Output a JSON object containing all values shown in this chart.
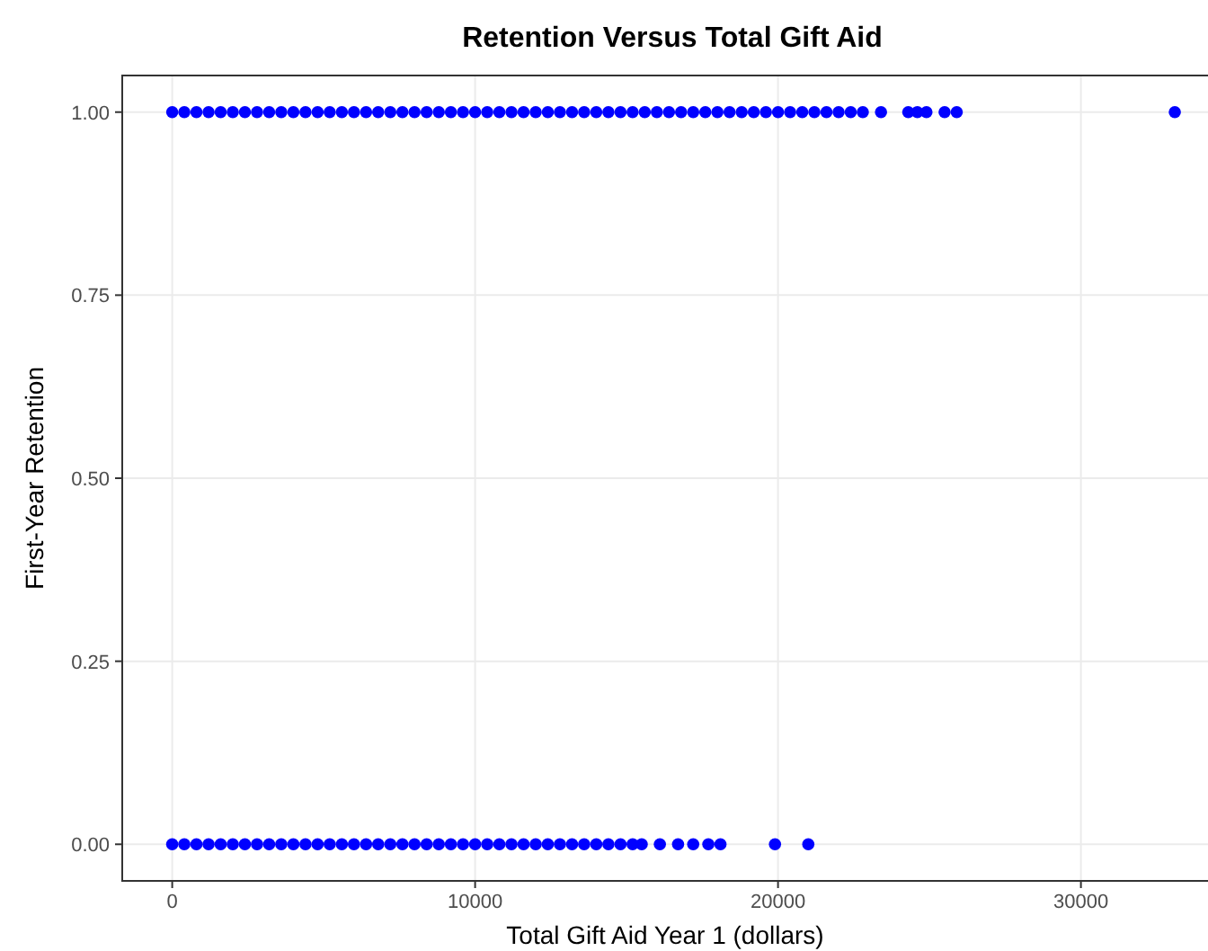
{
  "chart_data": {
    "type": "scatter",
    "title": "Retention Versus Total Gift Aid",
    "xlabel": "Total Gift Aid Year 1 (dollars)",
    "ylabel": "First-Year Retention",
    "xlim": [
      -1650,
      34700
    ],
    "ylim": [
      -0.05,
      1.05
    ],
    "xticks": [
      0,
      10000,
      20000,
      30000
    ],
    "yticks": [
      {
        "value": 0,
        "label": "0.00"
      },
      {
        "value": 0.25,
        "label": "0.25"
      },
      {
        "value": 0.5,
        "label": "0.50"
      },
      {
        "value": 0.75,
        "label": "0.75"
      },
      {
        "value": 1,
        "label": "1.00"
      }
    ],
    "grid": true,
    "marker": "circle",
    "series": [
      {
        "color": "#0000ff",
        "x": [
          0,
          400,
          800,
          1200,
          1600,
          2000,
          2400,
          2800,
          3200,
          3600,
          4000,
          4400,
          4800,
          5200,
          5600,
          6000,
          6400,
          6800,
          7200,
          7600,
          8000,
          8400,
          8800,
          9200,
          9600,
          10000,
          10400,
          10800,
          11200,
          11600,
          12000,
          12400,
          12800,
          13200,
          13600,
          14000,
          14400,
          14800,
          15200,
          15600,
          16000,
          16400,
          16800,
          17200,
          17600,
          18000,
          18400,
          18800,
          19200,
          19600,
          20000,
          20400,
          20800,
          21200,
          21600,
          22000,
          22400,
          22800,
          23400,
          24300,
          24600,
          24900,
          25500,
          25900,
          33100
        ],
        "values": [
          1,
          1,
          1,
          1,
          1,
          1,
          1,
          1,
          1,
          1,
          1,
          1,
          1,
          1,
          1,
          1,
          1,
          1,
          1,
          1,
          1,
          1,
          1,
          1,
          1,
          1,
          1,
          1,
          1,
          1,
          1,
          1,
          1,
          1,
          1,
          1,
          1,
          1,
          1,
          1,
          1,
          1,
          1,
          1,
          1,
          1,
          1,
          1,
          1,
          1,
          1,
          1,
          1,
          1,
          1,
          1,
          1,
          1,
          1,
          1,
          1,
          1,
          1,
          1,
          1
        ]
      },
      {
        "color": "#0000ff",
        "x": [
          0,
          400,
          800,
          1200,
          1600,
          2000,
          2400,
          2800,
          3200,
          3600,
          4000,
          4400,
          4800,
          5200,
          5600,
          6000,
          6400,
          6800,
          7200,
          7600,
          8000,
          8400,
          8800,
          9200,
          9600,
          10000,
          10400,
          10800,
          11200,
          11600,
          12000,
          12400,
          12800,
          13200,
          13600,
          14000,
          14400,
          14800,
          15200,
          15500,
          16100,
          16700,
          17200,
          17700,
          18100,
          19900,
          21000
        ],
        "values": [
          0,
          0,
          0,
          0,
          0,
          0,
          0,
          0,
          0,
          0,
          0,
          0,
          0,
          0,
          0,
          0,
          0,
          0,
          0,
          0,
          0,
          0,
          0,
          0,
          0,
          0,
          0,
          0,
          0,
          0,
          0,
          0,
          0,
          0,
          0,
          0,
          0,
          0,
          0,
          0,
          0,
          0,
          0,
          0,
          0,
          0,
          0
        ]
      }
    ]
  }
}
